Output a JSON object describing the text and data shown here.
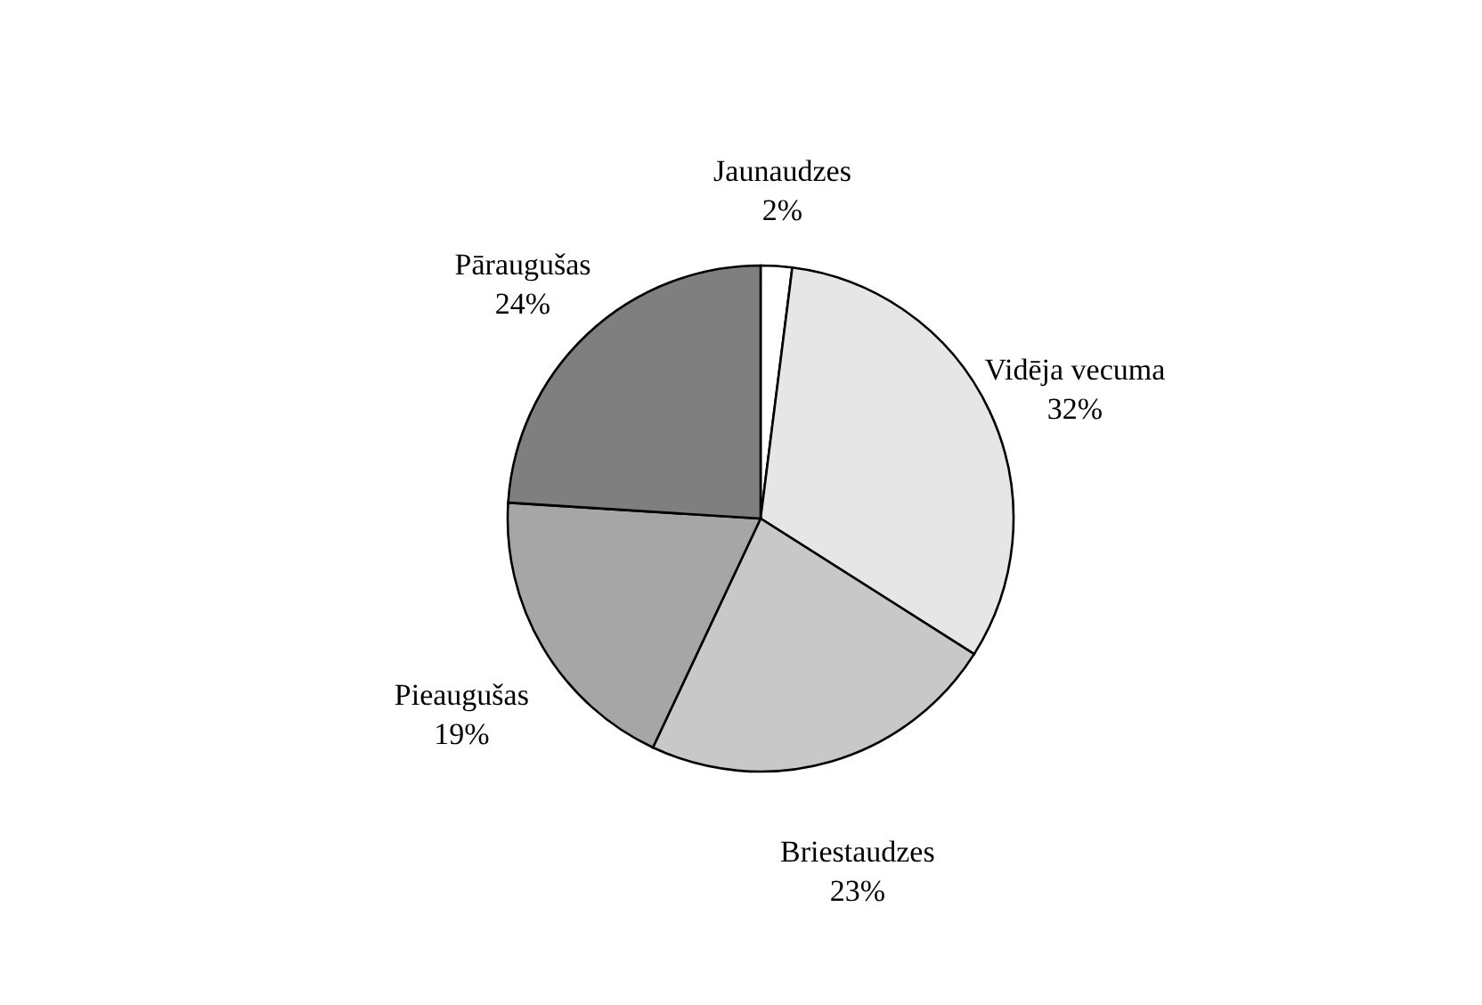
{
  "chart_data": {
    "type": "pie",
    "categories": [
      "Jaunaudzes",
      "Vidēja vecuma",
      "Briestaudzes",
      "Pieaugušas",
      "Pāraugušas"
    ],
    "values": [
      2,
      32,
      23,
      19,
      24
    ],
    "value_labels": [
      "2%",
      "32%",
      "23%",
      "19%",
      "24%"
    ],
    "colors": [
      "#ffffff",
      "#e6e6e6",
      "#c8c8c8",
      "#a6a6a6",
      "#7f7f7f"
    ]
  }
}
